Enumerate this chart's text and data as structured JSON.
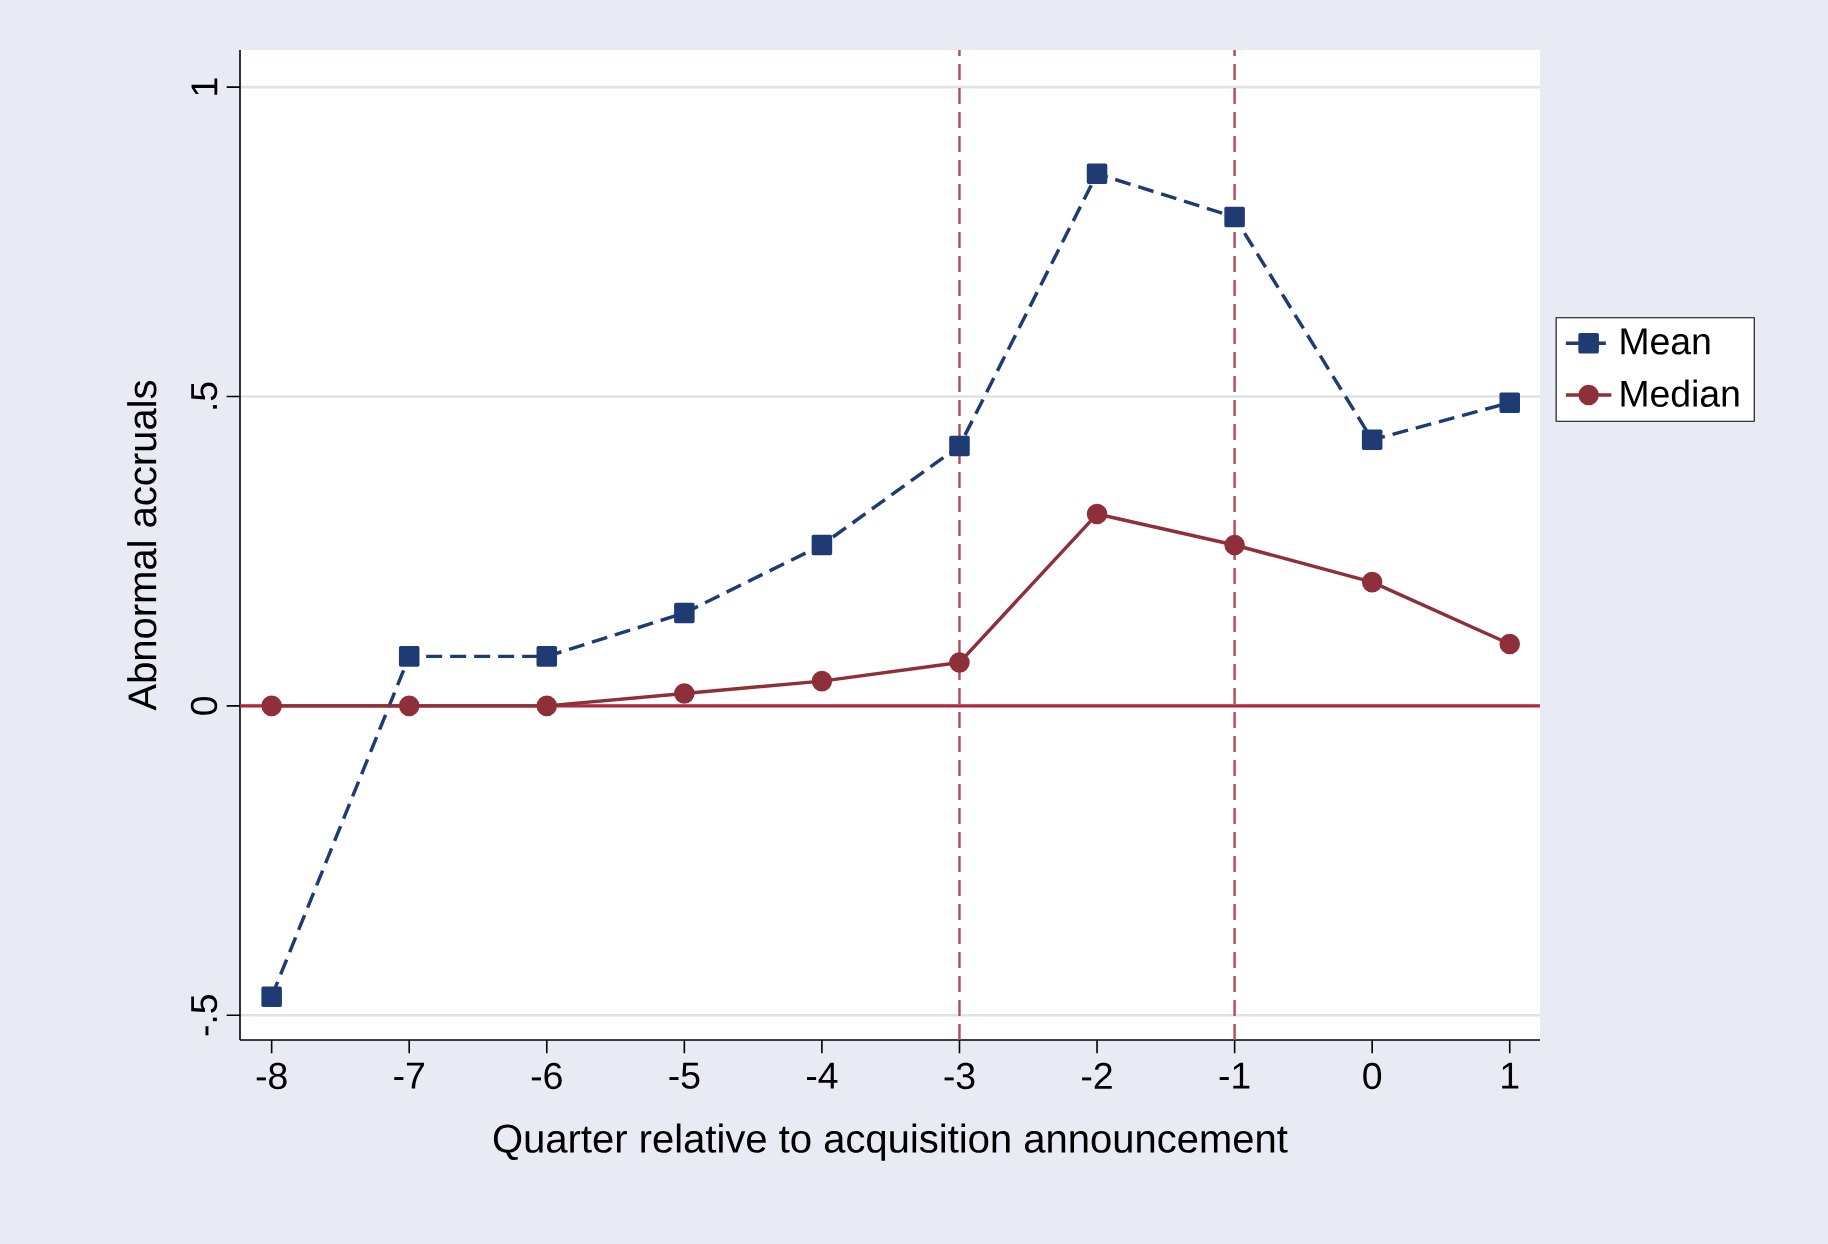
{
  "chart_data": {
    "type": "line",
    "xlabel": "Quarter relative to acquisition announcement",
    "ylabel": "Abnormal accruals",
    "x": [
      -8,
      -7,
      -6,
      -5,
      -4,
      -3,
      -2,
      -1,
      0,
      1
    ],
    "series": [
      {
        "name": "Mean",
        "color": "#1f3b73",
        "marker": "square",
        "line_style": "dashed",
        "values": [
          -0.47,
          0.08,
          0.08,
          0.15,
          0.26,
          0.42,
          0.86,
          0.79,
          0.43,
          0.49
        ]
      },
      {
        "name": "Median",
        "color": "#8e2f3a",
        "marker": "circle",
        "line_style": "solid",
        "values": [
          0,
          0,
          0,
          0.02,
          0.04,
          0.07,
          0.31,
          0.26,
          0.2,
          0.1
        ]
      }
    ],
    "xlim": [
      -8.23,
      1.22
    ],
    "ylim": [
      -0.54,
      1.06
    ],
    "xticks": [
      -8,
      -7,
      -6,
      -5,
      -4,
      -3,
      -2,
      -1,
      0,
      1
    ],
    "yticks": [
      {
        "value": -0.5,
        "label": "-.5"
      },
      {
        "value": 0,
        "label": "0"
      },
      {
        "value": 0.5,
        "label": ".5"
      },
      {
        "value": 1,
        "label": "1"
      }
    ],
    "grid": "y",
    "legend": "right",
    "ref_lines": [
      {
        "axis": "x",
        "value": -3,
        "color": "#b24a5a",
        "line_style": "dashed"
      },
      {
        "axis": "x",
        "value": -1,
        "color": "#b24a5a",
        "line_style": "dashed"
      },
      {
        "axis": "y",
        "value": 0,
        "color": "#b2263f",
        "line_style": "solid"
      }
    ]
  }
}
